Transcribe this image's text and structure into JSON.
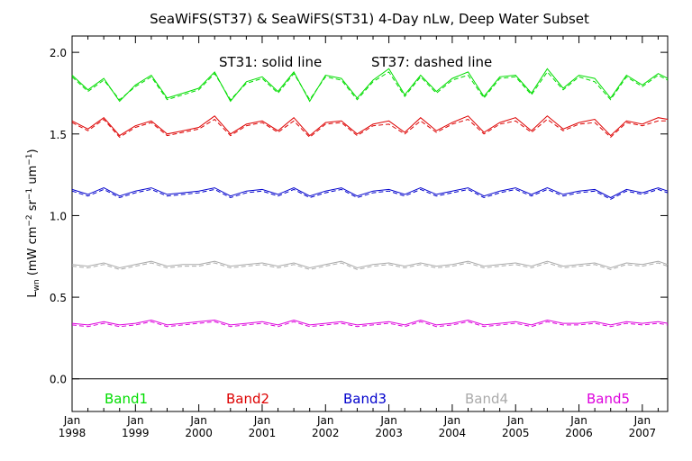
{
  "chart_data": {
    "type": "line",
    "title": "SeaWiFS(ST37) & SeaWiFS(ST31) 4-Day nLw, Deep Water Subset",
    "annotation_solid": "ST31: solid line",
    "annotation_dashed": "ST37: dashed line",
    "ylabel": "L_wn (mW cm^-2 sr^-1 um^-1)",
    "ylim": [
      -0.2,
      2.1
    ],
    "xlim": [
      1998.0,
      2007.4
    ],
    "yticks": [
      "0.0",
      "0.5",
      "1.0",
      "1.5",
      "2.0"
    ],
    "xticks": [
      {
        "month": "Jan",
        "year": "1998"
      },
      {
        "month": "Jan",
        "year": "1999"
      },
      {
        "month": "Jan",
        "year": "2000"
      },
      {
        "month": "Jan",
        "year": "2001"
      },
      {
        "month": "Jan",
        "year": "2002"
      },
      {
        "month": "Jan",
        "year": "2003"
      },
      {
        "month": "Jan",
        "year": "2004"
      },
      {
        "month": "Jan",
        "year": "2005"
      },
      {
        "month": "Jan",
        "year": "2006"
      },
      {
        "month": "Jan",
        "year": "2007"
      }
    ],
    "x": [
      1998.0,
      1998.25,
      1998.5,
      1998.75,
      1999.0,
      1999.25,
      1999.5,
      1999.75,
      2000.0,
      2000.25,
      2000.5,
      2000.75,
      2001.0,
      2001.25,
      2001.5,
      2001.75,
      2002.0,
      2002.25,
      2002.5,
      2002.75,
      2003.0,
      2003.25,
      2003.5,
      2003.75,
      2004.0,
      2004.25,
      2004.5,
      2004.75,
      2005.0,
      2005.25,
      2005.5,
      2005.75,
      2006.0,
      2006.25,
      2006.5,
      2006.75,
      2007.0,
      2007.25,
      2007.4
    ],
    "series": [
      {
        "name": "Band1",
        "color": "#00dd00",
        "st31": [
          1.86,
          1.77,
          1.84,
          1.7,
          1.8,
          1.86,
          1.72,
          1.75,
          1.78,
          1.88,
          1.7,
          1.82,
          1.85,
          1.76,
          1.88,
          1.7,
          1.86,
          1.84,
          1.72,
          1.83,
          1.9,
          1.74,
          1.86,
          1.76,
          1.84,
          1.88,
          1.73,
          1.85,
          1.86,
          1.75,
          1.9,
          1.78,
          1.86,
          1.84,
          1.72,
          1.86,
          1.8,
          1.87,
          1.84
        ],
        "st37": [
          1.85,
          1.76,
          1.83,
          1.71,
          1.79,
          1.85,
          1.71,
          1.74,
          1.77,
          1.87,
          1.71,
          1.81,
          1.84,
          1.75,
          1.87,
          1.71,
          1.85,
          1.83,
          1.71,
          1.82,
          1.88,
          1.73,
          1.85,
          1.75,
          1.83,
          1.86,
          1.72,
          1.84,
          1.85,
          1.74,
          1.88,
          1.77,
          1.85,
          1.82,
          1.71,
          1.85,
          1.79,
          1.86,
          1.83
        ]
      },
      {
        "name": "Band2",
        "color": "#dd0000",
        "st31": [
          1.58,
          1.53,
          1.6,
          1.49,
          1.55,
          1.58,
          1.5,
          1.52,
          1.54,
          1.61,
          1.5,
          1.56,
          1.58,
          1.52,
          1.6,
          1.49,
          1.57,
          1.58,
          1.5,
          1.56,
          1.58,
          1.51,
          1.6,
          1.52,
          1.57,
          1.61,
          1.51,
          1.57,
          1.6,
          1.52,
          1.61,
          1.53,
          1.57,
          1.59,
          1.49,
          1.58,
          1.56,
          1.6,
          1.59
        ],
        "st37": [
          1.57,
          1.52,
          1.59,
          1.48,
          1.54,
          1.57,
          1.49,
          1.51,
          1.53,
          1.59,
          1.49,
          1.55,
          1.57,
          1.51,
          1.58,
          1.48,
          1.56,
          1.57,
          1.49,
          1.55,
          1.56,
          1.5,
          1.58,
          1.51,
          1.56,
          1.59,
          1.5,
          1.56,
          1.58,
          1.51,
          1.59,
          1.52,
          1.56,
          1.57,
          1.48,
          1.57,
          1.55,
          1.58,
          1.58
        ]
      },
      {
        "name": "Band3",
        "color": "#0000cc",
        "st31": [
          1.16,
          1.13,
          1.17,
          1.12,
          1.15,
          1.17,
          1.13,
          1.14,
          1.15,
          1.17,
          1.12,
          1.15,
          1.16,
          1.13,
          1.17,
          1.12,
          1.15,
          1.17,
          1.12,
          1.15,
          1.16,
          1.13,
          1.17,
          1.13,
          1.15,
          1.17,
          1.12,
          1.15,
          1.17,
          1.13,
          1.17,
          1.13,
          1.15,
          1.16,
          1.11,
          1.16,
          1.14,
          1.17,
          1.15
        ],
        "st37": [
          1.15,
          1.12,
          1.16,
          1.11,
          1.14,
          1.16,
          1.12,
          1.13,
          1.14,
          1.16,
          1.11,
          1.14,
          1.15,
          1.12,
          1.16,
          1.11,
          1.14,
          1.16,
          1.11,
          1.14,
          1.15,
          1.12,
          1.16,
          1.12,
          1.14,
          1.16,
          1.11,
          1.14,
          1.16,
          1.12,
          1.16,
          1.12,
          1.14,
          1.15,
          1.1,
          1.15,
          1.13,
          1.16,
          1.14
        ]
      },
      {
        "name": "Band4",
        "color": "#aaaaaa",
        "st31": [
          0.7,
          0.69,
          0.71,
          0.68,
          0.7,
          0.72,
          0.69,
          0.7,
          0.7,
          0.72,
          0.69,
          0.7,
          0.71,
          0.69,
          0.71,
          0.68,
          0.7,
          0.72,
          0.68,
          0.7,
          0.71,
          0.69,
          0.71,
          0.69,
          0.7,
          0.72,
          0.69,
          0.7,
          0.71,
          0.69,
          0.72,
          0.69,
          0.7,
          0.71,
          0.68,
          0.71,
          0.7,
          0.72,
          0.7
        ],
        "st37": [
          0.69,
          0.68,
          0.7,
          0.67,
          0.69,
          0.71,
          0.68,
          0.69,
          0.69,
          0.71,
          0.68,
          0.69,
          0.7,
          0.68,
          0.7,
          0.67,
          0.69,
          0.71,
          0.67,
          0.69,
          0.7,
          0.68,
          0.7,
          0.68,
          0.69,
          0.71,
          0.68,
          0.69,
          0.7,
          0.68,
          0.71,
          0.68,
          0.69,
          0.7,
          0.67,
          0.7,
          0.69,
          0.71,
          0.69
        ]
      },
      {
        "name": "Band5",
        "color": "#dd00dd",
        "st31": [
          0.34,
          0.33,
          0.35,
          0.33,
          0.34,
          0.36,
          0.33,
          0.34,
          0.35,
          0.36,
          0.33,
          0.34,
          0.35,
          0.33,
          0.36,
          0.33,
          0.34,
          0.35,
          0.33,
          0.34,
          0.35,
          0.33,
          0.36,
          0.33,
          0.34,
          0.36,
          0.33,
          0.34,
          0.35,
          0.33,
          0.36,
          0.34,
          0.34,
          0.35,
          0.33,
          0.35,
          0.34,
          0.35,
          0.34
        ],
        "st37": [
          0.33,
          0.32,
          0.34,
          0.32,
          0.33,
          0.35,
          0.32,
          0.33,
          0.34,
          0.35,
          0.32,
          0.33,
          0.34,
          0.32,
          0.35,
          0.32,
          0.33,
          0.34,
          0.32,
          0.33,
          0.34,
          0.32,
          0.35,
          0.32,
          0.33,
          0.35,
          0.32,
          0.33,
          0.34,
          0.32,
          0.35,
          0.33,
          0.33,
          0.34,
          0.32,
          0.34,
          0.33,
          0.34,
          0.33
        ]
      }
    ]
  }
}
